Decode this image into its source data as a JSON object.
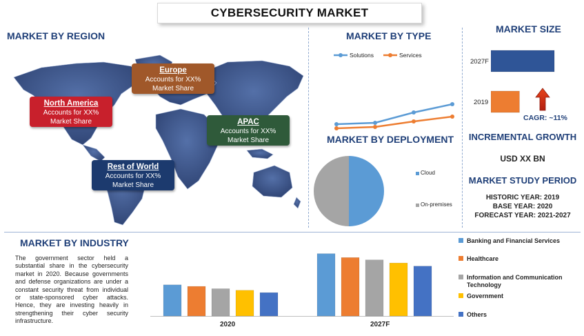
{
  "title": "CYBERSECURITY MARKET",
  "sections": {
    "region": "MARKET BY REGION",
    "type": "MARKET BY TYPE",
    "size": "MARKET SIZE",
    "deployment": "MARKET BY DEPLOYMENT",
    "incremental": "INCREMENTAL GROWTH",
    "incremental_value": "USD XX BN",
    "study_period": "MARKET STUDY PERIOD",
    "industry": "MARKET BY INDUSTRY"
  },
  "regions": [
    {
      "name": "North America",
      "line1": "Accounts for XX%",
      "line2": "Market Share",
      "color": "#c8202c"
    },
    {
      "name": "Europe",
      "line1": "Accounts for XX%",
      "line2": "Market Share",
      "color": "#a0582a"
    },
    {
      "name": "APAC",
      "line1": "Accounts for XX%",
      "line2": "Market Share",
      "color": "#2f5a3a"
    },
    {
      "name": "Rest of World",
      "line1": "Accounts for XX%",
      "line2": "Market Share",
      "color": "#1c3a6e"
    }
  ],
  "study_period": {
    "historic": "HISTORIC YEAR: 2019",
    "base": "BASE YEAR: 2020",
    "forecast": "FORECAST YEAR: 2021-2027"
  },
  "industry_text": "The government sector held a substantial share in the cybersecurity market in 2020. Because governments and defense organizations are under a constant security threat from individual or state-sponsored cyber attacks. Hence, they are investing heavily in strengthening their cyber security infrastructure.",
  "chart_data": [
    {
      "type": "line",
      "title": "MARKET BY TYPE",
      "x": [
        1,
        2,
        3,
        4
      ],
      "series": [
        {
          "name": "Solutions",
          "values": [
            1.6,
            1.8,
            3.3,
            4.5
          ],
          "color": "#5b9bd5"
        },
        {
          "name": "Services",
          "values": [
            1.0,
            1.2,
            2.0,
            2.7
          ],
          "color": "#ed7d31"
        }
      ],
      "ylim": [
        0,
        10
      ],
      "legend": "top"
    },
    {
      "type": "bar",
      "title": "MARKET SIZE",
      "orientation": "horizontal",
      "categories": [
        "2027F",
        "2019"
      ],
      "values": [
        100,
        45
      ],
      "colors": [
        "#2f5597",
        "#ed7d31"
      ],
      "annotation": "CAGR: ~11%"
    },
    {
      "type": "pie",
      "title": "MARKET BY DEPLOYMENT",
      "labels": [
        "Cloud",
        "On-premises"
      ],
      "values": [
        50,
        50
      ],
      "colors": [
        "#5b9bd5",
        "#a5a5a5"
      ],
      "legend": "right"
    },
    {
      "type": "bar",
      "title": "MARKET BY INDUSTRY",
      "categories": [
        "2020",
        "2027F"
      ],
      "series": [
        {
          "name": "Banking and Financial Services",
          "values": [
            40,
            80
          ],
          "color": "#5b9bd5"
        },
        {
          "name": "Healthcare",
          "values": [
            38,
            75
          ],
          "color": "#ed7d31"
        },
        {
          "name": "Information and Communication Technology",
          "values": [
            35,
            72
          ],
          "color": "#a5a5a5"
        },
        {
          "name": "Government",
          "values": [
            33,
            68
          ],
          "color": "#ffc000"
        },
        {
          "name": "Others",
          "values": [
            30,
            64
          ],
          "color": "#4472c4"
        }
      ],
      "ylim": [
        0,
        85
      ],
      "legend": "right"
    }
  ]
}
